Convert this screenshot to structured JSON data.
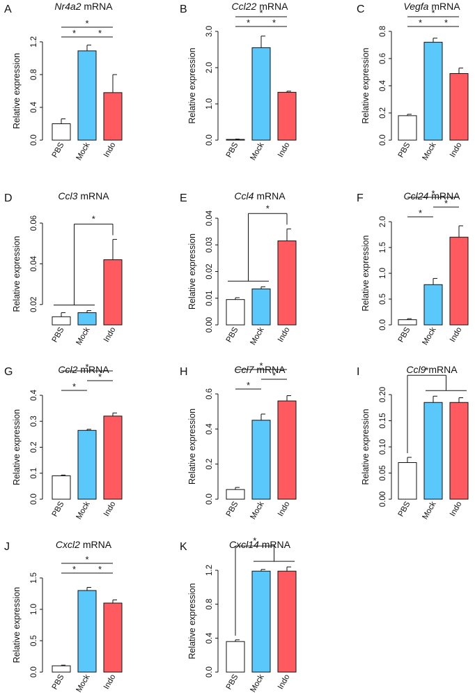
{
  "figure": {
    "categories": [
      "PBS",
      "Mock",
      "Indo"
    ],
    "ylabel": "Relative expression",
    "title_suffix": "mRNA"
  },
  "colors": {
    "PBS": "#ffffff",
    "Mock": "#5ac8fa",
    "Indo": "#ff5a5f",
    "ink": "#111111"
  },
  "chart_data": [
    {
      "panel": "A",
      "type": "bar",
      "gene": "Nr4a2",
      "title": "Nr4a2 mRNA",
      "categories": [
        "PBS",
        "Mock",
        "Indo"
      ],
      "values": [
        0.2,
        1.09,
        0.58
      ],
      "errors": [
        0.06,
        0.07,
        0.22
      ],
      "ylim": [
        0,
        1.2
      ],
      "yticks": [
        0.0,
        0.4,
        0.8,
        1.2
      ],
      "ytick_labels": [
        "0.0",
        "0.4",
        "0.8",
        "1.2"
      ],
      "xlabel": "",
      "ylabel": "Relative expression",
      "significance": [
        {
          "kind": "pair",
          "from": 0,
          "to": 1,
          "level": 1,
          "label": "*"
        },
        {
          "kind": "pair",
          "from": 1,
          "to": 2,
          "level": 1,
          "label": "*"
        },
        {
          "kind": "pair",
          "from": 0,
          "to": 2,
          "level": 2,
          "label": "*"
        }
      ]
    },
    {
      "panel": "B",
      "type": "bar",
      "gene": "Ccl22",
      "title": "Ccl22 mRNA",
      "categories": [
        "PBS",
        "Mock",
        "Indo"
      ],
      "values": [
        0.02,
        2.55,
        1.32
      ],
      "errors": [
        0.01,
        0.32,
        0.03
      ],
      "ylim": [
        0,
        3.0
      ],
      "yticks": [
        0.0,
        1.0,
        2.0,
        3.0
      ],
      "ytick_labels": [
        "0.0",
        "1.0",
        "2.0",
        "3.0"
      ],
      "xlabel": "",
      "ylabel": "Relative expression",
      "significance": [
        {
          "kind": "pair",
          "from": 0,
          "to": 1,
          "level": 1,
          "label": "*"
        },
        {
          "kind": "pair",
          "from": 1,
          "to": 2,
          "level": 1,
          "label": "*"
        },
        {
          "kind": "pair",
          "from": 0,
          "to": 2,
          "level": 2,
          "label": "*"
        }
      ]
    },
    {
      "panel": "C",
      "type": "bar",
      "gene": "Vegfa",
      "title": "Vegfa mRNA",
      "categories": [
        "PBS",
        "Mock",
        "Indo"
      ],
      "values": [
        0.18,
        0.72,
        0.49
      ],
      "errors": [
        0.01,
        0.03,
        0.04
      ],
      "ylim": [
        0,
        0.8
      ],
      "yticks": [
        0.0,
        0.2,
        0.4,
        0.6,
        0.8
      ],
      "ytick_labels": [
        "0.0",
        "0.2",
        "0.4",
        "0.6",
        "0.8"
      ],
      "xlabel": "",
      "ylabel": "Relative expression",
      "significance": [
        {
          "kind": "pair",
          "from": 0,
          "to": 1,
          "level": 1,
          "label": "*"
        },
        {
          "kind": "pair",
          "from": 1,
          "to": 2,
          "level": 1,
          "label": "*"
        },
        {
          "kind": "pair",
          "from": 0,
          "to": 2,
          "level": 2,
          "label": "*"
        }
      ]
    },
    {
      "panel": "D",
      "type": "bar",
      "gene": "Ccl3",
      "title": "Ccl3 mRNA",
      "categories": [
        "PBS",
        "Mock",
        "Indo"
      ],
      "values": [
        0.014,
        0.016,
        0.042
      ],
      "errors": [
        0.002,
        0.001,
        0.01
      ],
      "ylim": [
        0.01,
        0.06
      ],
      "yticks": [
        0.02,
        0.04,
        0.06
      ],
      "ytick_labels": [
        "0.02",
        "0.04",
        "0.06"
      ],
      "xlabel": "",
      "ylabel": "Relative expression",
      "significance": [
        {
          "kind": "group",
          "group": [
            0,
            1
          ],
          "to": 2,
          "label": "*"
        }
      ]
    },
    {
      "panel": "E",
      "type": "bar",
      "gene": "Ccl4",
      "title": "Ccl4 mRNA",
      "categories": [
        "PBS",
        "Mock",
        "Indo"
      ],
      "values": [
        0.0095,
        0.0135,
        0.0315
      ],
      "errors": [
        0.0007,
        0.0008,
        0.0045
      ],
      "ylim": [
        0,
        0.04
      ],
      "yticks": [
        0.0,
        0.01,
        0.02,
        0.03,
        0.04
      ],
      "ytick_labels": [
        "0.00",
        "0.01",
        "0.02",
        "0.03",
        "0.04"
      ],
      "xlabel": "",
      "ylabel": "Relative expression",
      "significance": [
        {
          "kind": "group",
          "group": [
            0,
            1
          ],
          "to": 2,
          "label": "*"
        }
      ]
    },
    {
      "panel": "F",
      "type": "bar",
      "gene": "Ccl24",
      "title": "Ccl24 mRNA",
      "categories": [
        "PBS",
        "Mock",
        "Indo"
      ],
      "values": [
        0.1,
        0.78,
        1.7
      ],
      "errors": [
        0.02,
        0.12,
        0.22
      ],
      "ylim": [
        0,
        2.0
      ],
      "yticks": [
        0.0,
        0.5,
        1.0,
        1.5,
        2.0
      ],
      "ytick_labels": [
        "0.0",
        "0.5",
        "1.0",
        "1.5",
        "2.0"
      ],
      "xlabel": "",
      "ylabel": "Relative expression",
      "significance": [
        {
          "kind": "pair",
          "from": 0,
          "to": 1,
          "level": 1,
          "label": "*"
        },
        {
          "kind": "pair",
          "from": 1,
          "to": 2,
          "level": 2,
          "label": "*"
        },
        {
          "kind": "pair",
          "from": 0,
          "to": 2,
          "level": 3,
          "label": "*"
        }
      ]
    },
    {
      "panel": "G",
      "type": "bar",
      "gene": "Ccl2",
      "title": "Ccl2 mRNA",
      "categories": [
        "PBS",
        "Mock",
        "Indo"
      ],
      "values": [
        0.09,
        0.265,
        0.32
      ],
      "errors": [
        0.003,
        0.004,
        0.012
      ],
      "ylim": [
        0,
        0.4
      ],
      "yticks": [
        0.0,
        0.1,
        0.2,
        0.3,
        0.4
      ],
      "ytick_labels": [
        "0.0",
        "0.1",
        "0.2",
        "0.3",
        "0.4"
      ],
      "xlabel": "",
      "ylabel": "Relative expression",
      "significance": [
        {
          "kind": "pair",
          "from": 0,
          "to": 1,
          "level": 1,
          "label": "*"
        },
        {
          "kind": "pair",
          "from": 1,
          "to": 2,
          "level": 2,
          "label": "*"
        },
        {
          "kind": "pair",
          "from": 0,
          "to": 2,
          "level": 3,
          "label": "*"
        }
      ]
    },
    {
      "panel": "H",
      "type": "bar",
      "gene": "Ccl7",
      "title": "Ccl7 mRNA",
      "categories": [
        "PBS",
        "Mock",
        "Indo"
      ],
      "values": [
        0.055,
        0.45,
        0.56
      ],
      "errors": [
        0.012,
        0.035,
        0.03
      ],
      "ylim": [
        0,
        0.6
      ],
      "yticks": [
        0.0,
        0.2,
        0.4,
        0.6
      ],
      "ytick_labels": [
        "0.0",
        "0.2",
        "0.4",
        "0.6"
      ],
      "xlabel": "",
      "ylabel": "Relative expression",
      "significance": [
        {
          "kind": "pair",
          "from": 0,
          "to": 1,
          "level": 1,
          "label": "*"
        },
        {
          "kind": "pair",
          "from": 1,
          "to": 2,
          "level": 2,
          "label": "*"
        },
        {
          "kind": "pair",
          "from": 0,
          "to": 2,
          "level": 3,
          "label": "*"
        }
      ]
    },
    {
      "panel": "I",
      "type": "bar",
      "gene": "Ccl9",
      "title": "Ccl9 mRNA",
      "categories": [
        "PBS",
        "Mock",
        "Indo"
      ],
      "values": [
        0.07,
        0.185,
        0.185
      ],
      "errors": [
        0.01,
        0.012,
        0.009
      ],
      "ylim": [
        0,
        0.2
      ],
      "yticks": [
        0.0,
        0.05,
        0.1,
        0.15,
        0.2
      ],
      "ytick_labels": [
        "0.00",
        "0.05",
        "0.10",
        "0.15",
        "0.20"
      ],
      "xlabel": "",
      "ylabel": "Relative expression",
      "significance": [
        {
          "kind": "group",
          "group": [
            1,
            2
          ],
          "to": 0,
          "label": "*"
        }
      ]
    },
    {
      "panel": "J",
      "type": "bar",
      "gene": "Cxcl2",
      "title": "Cxcl2 mRNA",
      "categories": [
        "PBS",
        "Mock",
        "Indo"
      ],
      "values": [
        0.1,
        1.3,
        1.1
      ],
      "errors": [
        0.01,
        0.05,
        0.05
      ],
      "ylim": [
        0,
        1.5
      ],
      "yticks": [
        0.0,
        0.5,
        1.0,
        1.5
      ],
      "ytick_labels": [
        "0.0",
        "0.5",
        "1.0",
        "1.5"
      ],
      "xlabel": "",
      "ylabel": "Relative expression",
      "significance": [
        {
          "kind": "pair",
          "from": 0,
          "to": 1,
          "level": 1,
          "label": "*"
        },
        {
          "kind": "pair",
          "from": 1,
          "to": 2,
          "level": 1,
          "label": "*"
        },
        {
          "kind": "pair",
          "from": 0,
          "to": 2,
          "level": 2,
          "label": "*"
        }
      ]
    },
    {
      "panel": "K",
      "type": "bar",
      "gene": "Cxcl14",
      "title": "Cxcl14 mRNA",
      "categories": [
        "PBS",
        "Mock",
        "Indo"
      ],
      "values": [
        0.36,
        1.19,
        1.19
      ],
      "errors": [
        0.02,
        0.02,
        0.05
      ],
      "ylim": [
        0,
        1.2
      ],
      "yticks": [
        0.0,
        0.4,
        0.8,
        1.2
      ],
      "ytick_labels": [
        "0.0",
        "0.4",
        "0.8",
        "1.2"
      ],
      "xlabel": "",
      "ylabel": "Relative expression",
      "significance": [
        {
          "kind": "group",
          "group": [
            1,
            2
          ],
          "to": 0,
          "label": "*"
        }
      ]
    }
  ]
}
